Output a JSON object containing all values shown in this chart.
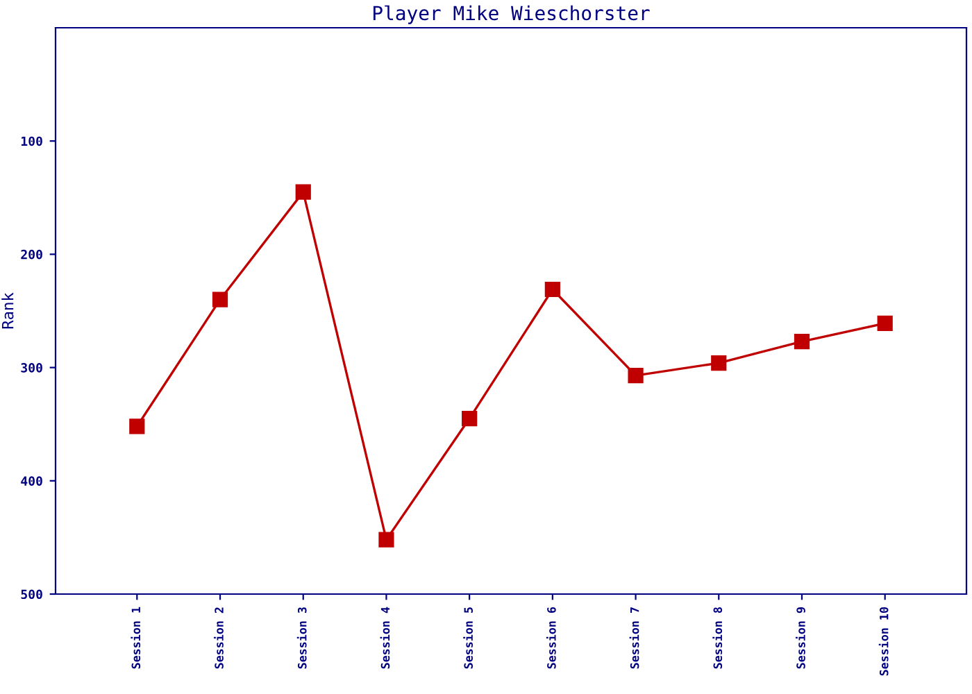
{
  "chart_data": {
    "type": "line",
    "title": "Player Mike Wieschorster",
    "ylabel": "Rank",
    "categories": [
      "Session 1",
      "Session 2",
      "Session 3",
      "Session 4",
      "Session 5",
      "Session 6",
      "Session 7",
      "Session 8",
      "Session 9",
      "Session 10"
    ],
    "series": [
      {
        "color": "#c00000",
        "values": [
          352,
          240,
          145,
          452,
          345,
          231,
          307,
          296,
          277,
          261
        ]
      }
    ],
    "ylim": [
      500,
      0
    ],
    "yticks": [
      100,
      200,
      300,
      400,
      500
    ],
    "marker": "square",
    "line_style": "solid",
    "grid": false,
    "legend": false
  }
}
